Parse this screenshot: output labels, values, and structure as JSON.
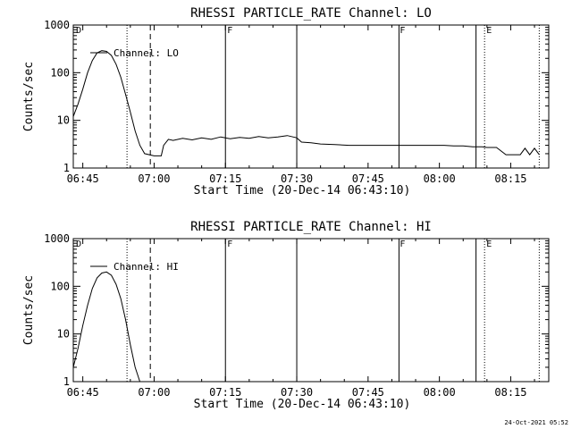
{
  "footer": {
    "timestamp": "24-Oct-2021 05:52"
  },
  "chart_data": [
    {
      "type": "line",
      "title": "RHESSI PARTICLE_RATE Channel: LO",
      "xlabel": "Start Time (20-Dec-14 06:43:10)",
      "ylabel": "Counts/sec",
      "yscale": "log",
      "ylim": [
        1,
        1000
      ],
      "xlim_minutes": [
        0,
        100
      ],
      "xticks": [
        {
          "m": 2,
          "label": "06:45"
        },
        {
          "m": 17,
          "label": "07:00"
        },
        {
          "m": 32,
          "label": "07:15"
        },
        {
          "m": 47,
          "label": "07:30"
        },
        {
          "m": 62,
          "label": "07:45"
        },
        {
          "m": 77,
          "label": "08:00"
        },
        {
          "m": 92,
          "label": "08:15"
        }
      ],
      "yticks": [
        {
          "v": 1,
          "label": "1"
        },
        {
          "v": 10,
          "label": "10"
        },
        {
          "v": 100,
          "label": "100"
        },
        {
          "v": 1000,
          "label": "1000"
        }
      ],
      "legend": "Channel: LO",
      "flags": [
        {
          "m": 0.4,
          "label": "D"
        },
        {
          "m": 32.2,
          "label": "F"
        },
        {
          "m": 68.5,
          "label": "F"
        },
        {
          "m": 86.7,
          "label": "E"
        }
      ],
      "vlines": [
        {
          "m": 11.3,
          "style": "dotted"
        },
        {
          "m": 16.2,
          "style": "dashed"
        },
        {
          "m": 32.0,
          "style": "solid"
        },
        {
          "m": 47.0,
          "style": "solid"
        },
        {
          "m": 68.5,
          "style": "solid"
        },
        {
          "m": 84.7,
          "style": "solid"
        },
        {
          "m": 86.5,
          "style": "dotted"
        },
        {
          "m": 98.0,
          "style": "dotted"
        }
      ],
      "series": [
        {
          "x": [
            0,
            1,
            2,
            3,
            4,
            5,
            6,
            7,
            8,
            9,
            10,
            11,
            12,
            13,
            14,
            15,
            17,
            18.5,
            19,
            20,
            21,
            23,
            25,
            27,
            29,
            31,
            33,
            35,
            37,
            39,
            41,
            43,
            45,
            47,
            48,
            50,
            52,
            55,
            58,
            60,
            62,
            64,
            66,
            68,
            70,
            72,
            74,
            76,
            78,
            80,
            82,
            84,
            86,
            87,
            89,
            91,
            93,
            94,
            95,
            96,
            97,
            98
          ],
          "y": [
            12,
            22,
            45,
            100,
            180,
            260,
            290,
            280,
            230,
            150,
            80,
            35,
            15,
            6,
            3,
            2,
            1.8,
            1.8,
            3,
            4,
            3.8,
            4.2,
            3.9,
            4.3,
            4,
            4.5,
            4.1,
            4.4,
            4.2,
            4.6,
            4.3,
            4.5,
            4.8,
            4.3,
            3.5,
            3.4,
            3.2,
            3.1,
            3,
            3,
            3,
            3,
            3,
            3,
            3,
            3,
            3,
            3,
            3,
            2.9,
            2.9,
            2.8,
            2.8,
            2.7,
            2.7,
            1.9,
            1.9,
            1.9,
            2.6,
            1.9,
            2.6,
            1.9
          ]
        }
      ]
    },
    {
      "type": "line",
      "title": "RHESSI PARTICLE_RATE Channel: HI",
      "xlabel": "Start Time (20-Dec-14 06:43:10)",
      "ylabel": "Counts/sec",
      "yscale": "log",
      "ylim": [
        1,
        1000
      ],
      "xlim_minutes": [
        0,
        100
      ],
      "xticks": [
        {
          "m": 2,
          "label": "06:45"
        },
        {
          "m": 17,
          "label": "07:00"
        },
        {
          "m": 32,
          "label": "07:15"
        },
        {
          "m": 47,
          "label": "07:30"
        },
        {
          "m": 62,
          "label": "07:45"
        },
        {
          "m": 77,
          "label": "08:00"
        },
        {
          "m": 92,
          "label": "08:15"
        }
      ],
      "yticks": [
        {
          "v": 1,
          "label": "1"
        },
        {
          "v": 10,
          "label": "10"
        },
        {
          "v": 100,
          "label": "100"
        },
        {
          "v": 1000,
          "label": "1000"
        }
      ],
      "legend": "Channel: HI",
      "flags": [
        {
          "m": 0.4,
          "label": "D"
        },
        {
          "m": 32.2,
          "label": "F"
        },
        {
          "m": 68.5,
          "label": "F"
        },
        {
          "m": 86.7,
          "label": "E"
        }
      ],
      "vlines": [
        {
          "m": 11.3,
          "style": "dotted"
        },
        {
          "m": 16.2,
          "style": "dashed"
        },
        {
          "m": 32.0,
          "style": "solid"
        },
        {
          "m": 47.0,
          "style": "solid"
        },
        {
          "m": 68.5,
          "style": "solid"
        },
        {
          "m": 84.7,
          "style": "solid"
        },
        {
          "m": 86.5,
          "style": "dotted"
        },
        {
          "m": 98.0,
          "style": "dotted"
        }
      ],
      "series": [
        {
          "x": [
            0,
            1,
            2,
            3,
            4,
            5,
            6,
            7,
            8,
            9,
            10,
            11,
            12,
            13,
            14
          ],
          "y": [
            2,
            5,
            15,
            40,
            90,
            150,
            190,
            200,
            170,
            110,
            55,
            20,
            6,
            2,
            1
          ]
        }
      ]
    }
  ]
}
